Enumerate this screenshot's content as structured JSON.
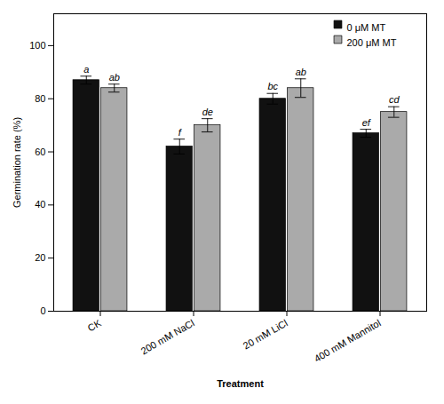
{
  "chart_data": {
    "type": "bar",
    "categories": [
      "CK",
      "200 mM NaCl",
      "20 mM LiCl",
      "400 mM Mannitol"
    ],
    "series": [
      {
        "name": "0 μM MT",
        "color": "#111111",
        "values": [
          87.0,
          62.0,
          80.0,
          67.0
        ],
        "errors": [
          1.5,
          2.8,
          2.0,
          1.5
        ],
        "annotations": [
          "a",
          "f",
          "bc",
          "ef"
        ]
      },
      {
        "name": "200 μM MT",
        "color": "#aaaaaa",
        "values": [
          84.0,
          70.0,
          84.0,
          75.0
        ],
        "errors": [
          1.5,
          2.5,
          3.5,
          2.0
        ],
        "annotations": [
          "ab",
          "de",
          "ab",
          "cd"
        ]
      }
    ],
    "xlabel": "Treatment",
    "ylabel": "Germination rate (%)",
    "ylim": [
      0,
      112
    ],
    "yticks": [
      0,
      20,
      40,
      60,
      80,
      100
    ],
    "legend": "upper right",
    "grid": false
  }
}
